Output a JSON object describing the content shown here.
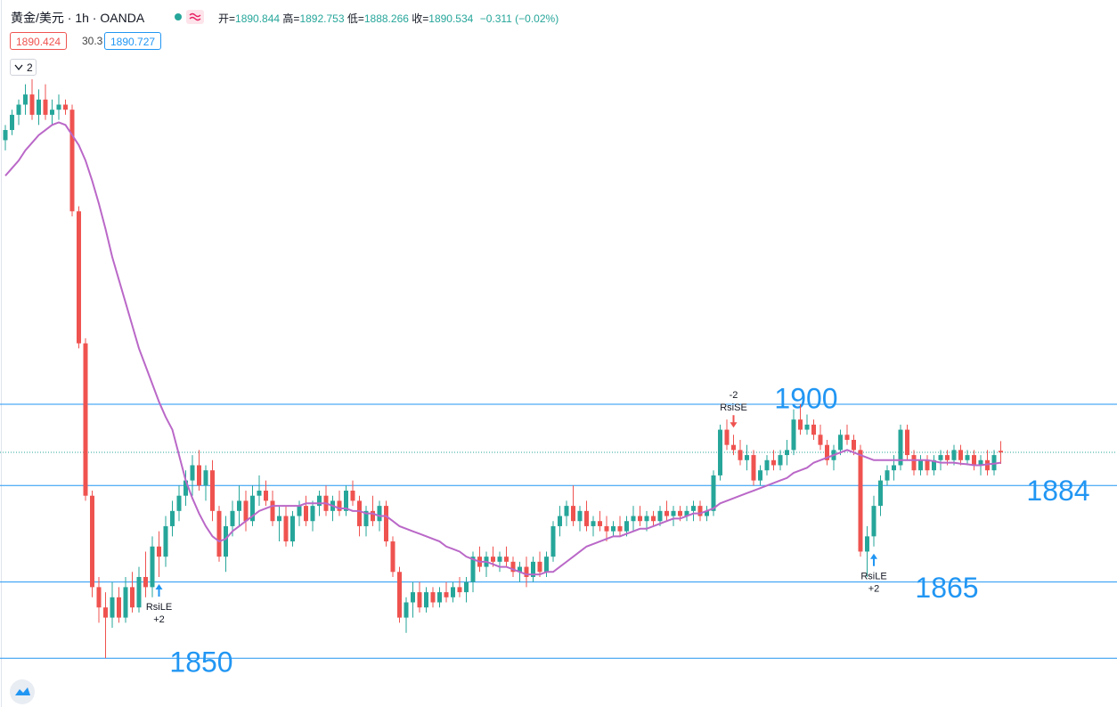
{
  "header": {
    "symbol": "黄金/美元",
    "interval": "1h",
    "source": "OANDA",
    "ohlc": [
      {
        "label": "开=",
        "value": "1890.844"
      },
      {
        "label": "高=",
        "value": "1892.753"
      },
      {
        "label": "低=",
        "value": "1888.266"
      },
      {
        "label": "收=",
        "value": "1890.534"
      }
    ],
    "change": "−0.311 (−0.02%)",
    "bid": "1890.424",
    "spread": "30.3",
    "ask": "1890.727",
    "indicator_count": "2"
  },
  "chart_data": {
    "type": "candlestick",
    "open": [
      1952,
      1954,
      1957,
      1959,
      1961,
      1957,
      1960,
      1957,
      1958,
      1959,
      1958,
      1938,
      1912,
      1882,
      1864,
      1860,
      1858,
      1862,
      1858,
      1864,
      1860,
      1866,
      1864,
      1872,
      1870,
      1876,
      1879,
      1882,
      1885,
      1888,
      1884,
      1887,
      1879,
      1870,
      1876,
      1879,
      1881,
      1877,
      1882,
      1883,
      1881,
      1877,
      1878,
      1873,
      1878,
      1880,
      1877,
      1880,
      1882,
      1879,
      1881,
      1879,
      1883,
      1881,
      1876,
      1879,
      1877,
      1880,
      1873,
      1867,
      1858,
      1861,
      1863,
      1860,
      1863,
      1861,
      1863,
      1862,
      1864,
      1863,
      1865,
      1870,
      1868,
      1870,
      1869,
      1870,
      1869,
      1867,
      1868,
      1866,
      1869,
      1867,
      1870,
      1876,
      1878,
      1880,
      1877,
      1879,
      1876,
      1877,
      1876,
      1875,
      1876,
      1875,
      1877,
      1878,
      1877,
      1878,
      1877,
      1879,
      1878,
      1879,
      1878,
      1879,
      1880,
      1878,
      1879,
      1886,
      1895,
      1892,
      1891,
      1889,
      1890,
      1885,
      1887,
      1889,
      1888,
      1890,
      1891,
      1897,
      1895,
      1896,
      1894,
      1892,
      1889,
      1891,
      1894,
      1893,
      1891,
      1871,
      1874,
      1880,
      1885,
      1887,
      1888,
      1895,
      1890,
      1887,
      1889,
      1887,
      1889,
      1890,
      1889,
      1891,
      1889,
      1890,
      1888,
      1889,
      1887,
      1890.844
    ],
    "high": [
      1955,
      1958,
      1960,
      1963,
      1964,
      1962,
      1963,
      1960,
      1961,
      1960,
      1959,
      1939,
      1913,
      1883,
      1866,
      1863,
      1865,
      1864,
      1866,
      1867,
      1868,
      1871,
      1874,
      1875,
      1878,
      1881,
      1884,
      1887,
      1890,
      1891,
      1888,
      1889,
      1880,
      1878,
      1881,
      1884,
      1883,
      1884,
      1886,
      1885,
      1883,
      1880,
      1880,
      1879,
      1881,
      1882,
      1881,
      1883,
      1884,
      1882,
      1883,
      1884,
      1885,
      1882,
      1880,
      1882,
      1881,
      1881,
      1874,
      1868,
      1862,
      1865,
      1865,
      1864,
      1864,
      1864,
      1865,
      1865,
      1866,
      1866,
      1871,
      1872,
      1871,
      1872,
      1871,
      1872,
      1870,
      1869,
      1870,
      1870,
      1871,
      1871,
      1877,
      1880,
      1881,
      1884,
      1880,
      1881,
      1878,
      1879,
      1878,
      1877,
      1878,
      1878,
      1880,
      1880,
      1879,
      1879,
      1880,
      1881,
      1880,
      1880,
      1880,
      1881,
      1881,
      1880,
      1887,
      1896,
      1897,
      1894,
      1893,
      1892,
      1891,
      1888,
      1890,
      1891,
      1891,
      1893,
      1899,
      1900,
      1898,
      1897,
      1896,
      1893,
      1892,
      1895,
      1896,
      1894,
      1892,
      1876,
      1882,
      1886,
      1888,
      1890,
      1896,
      1896,
      1891,
      1890,
      1890,
      1890,
      1891,
      1891,
      1892,
      1892,
      1891,
      1891,
      1890,
      1891,
      1891,
      1892.753
    ],
    "low": [
      1950,
      1953,
      1955,
      1957,
      1956,
      1955,
      1956,
      1955,
      1956,
      1957,
      1937,
      1911,
      1881,
      1862,
      1857,
      1850,
      1856,
      1857,
      1857,
      1859,
      1859,
      1862,
      1862,
      1866,
      1868,
      1874,
      1877,
      1880,
      1882,
      1883,
      1881,
      1877,
      1869,
      1867,
      1874,
      1876,
      1875,
      1876,
      1880,
      1880,
      1876,
      1873,
      1872,
      1872,
      1876,
      1876,
      1875,
      1878,
      1878,
      1877,
      1878,
      1878,
      1880,
      1874,
      1874,
      1876,
      1875,
      1872,
      1866,
      1857,
      1855,
      1858,
      1859,
      1859,
      1860,
      1860,
      1861,
      1861,
      1862,
      1861,
      1863,
      1867,
      1866,
      1868,
      1867,
      1868,
      1866,
      1865,
      1864,
      1865,
      1866,
      1866,
      1869,
      1874,
      1876,
      1876,
      1875,
      1875,
      1874,
      1875,
      1873,
      1874,
      1874,
      1874,
      1875,
      1876,
      1875,
      1876,
      1876,
      1877,
      1876,
      1877,
      1877,
      1877,
      1877,
      1877,
      1878,
      1885,
      1891,
      1890,
      1888,
      1887,
      1884,
      1884,
      1886,
      1887,
      1887,
      1888,
      1890,
      1894,
      1894,
      1893,
      1891,
      1888,
      1887,
      1890,
      1892,
      1890,
      1870,
      1866,
      1872,
      1878,
      1884,
      1885,
      1887,
      1889,
      1886,
      1886,
      1886,
      1886,
      1887,
      1888,
      1888,
      1888,
      1888,
      1887,
      1886,
      1886,
      1886,
      1888.266
    ],
    "close": [
      1954,
      1957,
      1959,
      1961,
      1957,
      1960,
      1957,
      1958,
      1959,
      1958,
      1938,
      1912,
      1882,
      1864,
      1860,
      1858,
      1862,
      1858,
      1864,
      1860,
      1866,
      1864,
      1872,
      1870,
      1876,
      1879,
      1882,
      1885,
      1888,
      1884,
      1887,
      1879,
      1870,
      1876,
      1879,
      1881,
      1877,
      1882,
      1883,
      1881,
      1877,
      1878,
      1873,
      1878,
      1880,
      1877,
      1880,
      1882,
      1879,
      1881,
      1879,
      1883,
      1881,
      1876,
      1879,
      1877,
      1880,
      1873,
      1867,
      1858,
      1861,
      1863,
      1860,
      1863,
      1861,
      1863,
      1862,
      1864,
      1863,
      1865,
      1870,
      1868,
      1870,
      1869,
      1870,
      1869,
      1867,
      1868,
      1866,
      1869,
      1867,
      1870,
      1876,
      1878,
      1880,
      1877,
      1879,
      1876,
      1877,
      1876,
      1875,
      1876,
      1875,
      1877,
      1878,
      1877,
      1878,
      1877,
      1879,
      1878,
      1879,
      1878,
      1879,
      1880,
      1878,
      1879,
      1886,
      1895,
      1892,
      1891,
      1889,
      1890,
      1885,
      1887,
      1889,
      1888,
      1890,
      1891,
      1897,
      1895,
      1896,
      1894,
      1892,
      1889,
      1891,
      1894,
      1893,
      1891,
      1871,
      1874,
      1880,
      1885,
      1887,
      1888,
      1895,
      1890,
      1887,
      1889,
      1887,
      1889,
      1890,
      1889,
      1891,
      1889,
      1890,
      1888,
      1889,
      1887,
      1890,
      1890.534
    ],
    "up_color": "#26a69a",
    "down_color": "#ef5350",
    "ma_values": [
      1945,
      1946.5,
      1948,
      1950,
      1951.5,
      1953,
      1954,
      1955,
      1955.5,
      1955,
      1953,
      1951,
      1948,
      1944,
      1939.5,
      1934.5,
      1929,
      1924.5,
      1920,
      1915.5,
      1911,
      1907.5,
      1904,
      1900.5,
      1897.5,
      1895,
      1890,
      1885,
      1881.5,
      1878.5,
      1876,
      1874,
      1873,
      1873.5,
      1875,
      1876,
      1877,
      1878,
      1879,
      1879.5,
      1880,
      1880,
      1880,
      1880,
      1880,
      1880.5,
      1880.5,
      1880.5,
      1880.5,
      1880,
      1879.5,
      1879.5,
      1879,
      1879,
      1878.5,
      1878.5,
      1878,
      1878,
      1877,
      1876,
      1875.5,
      1875,
      1874.5,
      1874,
      1873.5,
      1873,
      1872,
      1871.5,
      1871,
      1870,
      1869.5,
      1869,
      1869,
      1868.5,
      1868,
      1868,
      1867.5,
      1867,
      1866.5,
      1866.5,
      1866.5,
      1867,
      1867,
      1868,
      1869,
      1870,
      1871,
      1872,
      1872.5,
      1873,
      1873.5,
      1874,
      1874,
      1874.5,
      1875,
      1875.5,
      1875.5,
      1876,
      1876.5,
      1877,
      1877.5,
      1877.5,
      1878,
      1878.5,
      1878.5,
      1879,
      1879.5,
      1880.5,
      1881,
      1881.5,
      1882,
      1882.5,
      1883,
      1883.5,
      1884,
      1884.5,
      1885,
      1885.5,
      1886.5,
      1887,
      1887.5,
      1888.5,
      1889,
      1889.5,
      1890,
      1890.5,
      1891,
      1890.5,
      1890,
      1889.5,
      1889,
      1889,
      1889,
      1889,
      1889,
      1889,
      1889,
      1889,
      1889,
      1888.8,
      1888.5,
      1888.5,
      1888.5,
      1888.3,
      1888.2,
      1888,
      1888,
      1888.2,
      1888.3,
      1888.5
    ],
    "ma_color": "#ba68c8",
    "levels": [
      1900,
      1884,
      1865,
      1850
    ],
    "level_color": "#2196f3",
    "signals": [
      {
        "label": "RsiLE",
        "qty": "+2"
      },
      {
        "label": "RsiSE",
        "qty": "-2"
      },
      {
        "label": "RsiLE",
        "qty": "+2"
      }
    ],
    "ylim": [
      1840.4,
      1979.6
    ]
  }
}
